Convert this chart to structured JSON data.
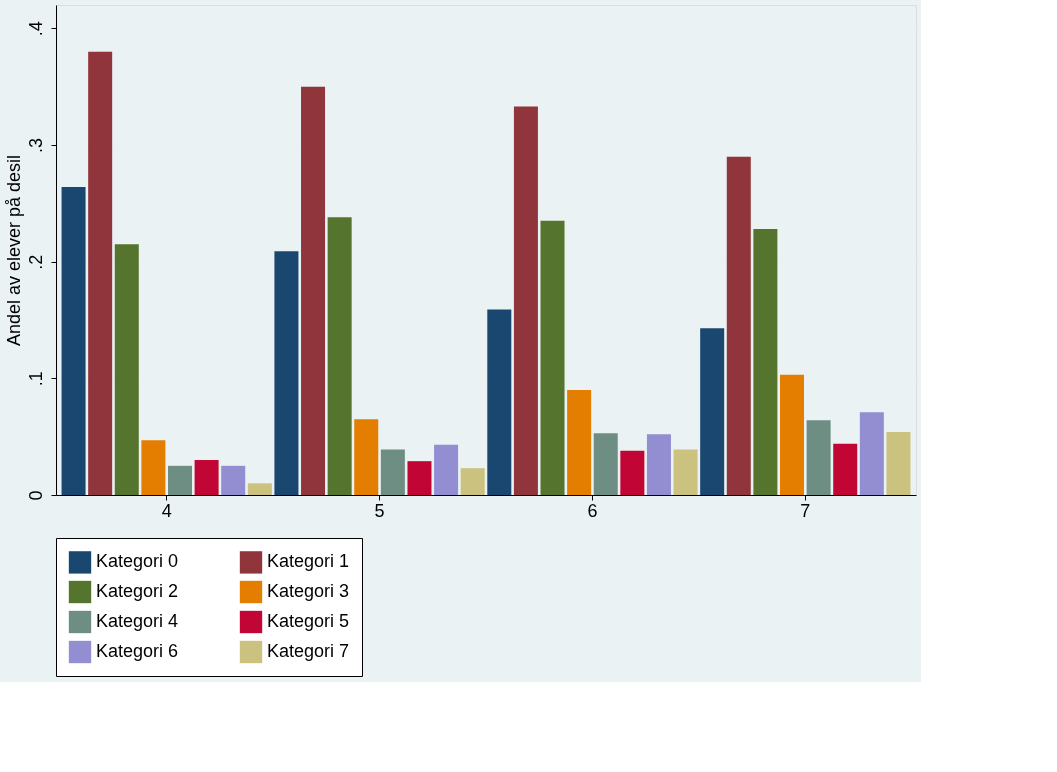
{
  "chart_data": {
    "type": "bar",
    "ylabel": "Andel av elever på desil",
    "categories": [
      "4",
      "5",
      "6",
      "7"
    ],
    "series": [
      {
        "name": "Kategori 0",
        "color": "#1a476f",
        "values": [
          0.264,
          0.209,
          0.159,
          0.143
        ]
      },
      {
        "name": "Kategori 1",
        "color": "#90353b",
        "values": [
          0.38,
          0.35,
          0.333,
          0.29
        ]
      },
      {
        "name": "Kategori 2",
        "color": "#55752f",
        "values": [
          0.215,
          0.238,
          0.235,
          0.228
        ]
      },
      {
        "name": "Kategori 3",
        "color": "#e37e00",
        "values": [
          0.047,
          0.065,
          0.09,
          0.103
        ]
      },
      {
        "name": "Kategori 4",
        "color": "#6e8e84",
        "values": [
          0.025,
          0.039,
          0.053,
          0.064
        ]
      },
      {
        "name": "Kategori 5",
        "color": "#c10534",
        "values": [
          0.03,
          0.029,
          0.038,
          0.044
        ]
      },
      {
        "name": "Kategori 6",
        "color": "#938dd2",
        "values": [
          0.025,
          0.043,
          0.052,
          0.071
        ]
      },
      {
        "name": "Kategori 7",
        "color": "#cac27e",
        "values": [
          0.01,
          0.023,
          0.039,
          0.054
        ]
      }
    ],
    "ylim": [
      0,
      0.42
    ],
    "yticks": [
      0,
      {
        "value": 0.1,
        "label": ".1"
      },
      {
        "value": 0.2,
        "label": ".2"
      },
      {
        "value": 0.3,
        "label": ".3"
      },
      {
        "value": 0.4,
        "label": ".4"
      }
    ],
    "grid": "y",
    "legend": "bottom"
  }
}
